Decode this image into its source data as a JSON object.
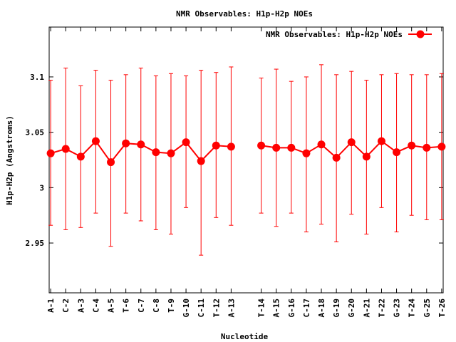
{
  "chart_data": {
    "type": "line",
    "title": "NMR Observables: H1p-H2p NOEs",
    "xlabel": "Nucleotide",
    "ylabel": "H1p-H2p (Angstroms)",
    "ylim": [
      2.905,
      3.145
    ],
    "yticks": [
      2.95,
      3,
      3.05,
      3.1
    ],
    "ytick_labels": [
      "2.95",
      "3",
      "3.05",
      "3.1"
    ],
    "grid": false,
    "legend_position": "top-right",
    "colors": {
      "series": "#ff0000",
      "axis": "#000000",
      "background": "#ffffff"
    },
    "categories": [
      "A-1",
      "C-2",
      "A-3",
      "C-4",
      "A-5",
      "T-6",
      "C-7",
      "C-8",
      "T-9",
      "G-10",
      "C-11",
      "T-12",
      "A-13",
      "T-14",
      "A-15",
      "G-16",
      "C-17",
      "A-18",
      "G-19",
      "G-20",
      "A-21",
      "T-22",
      "G-23",
      "T-24",
      "G-25",
      "T-26"
    ],
    "x": [
      1,
      2,
      3,
      4,
      5,
      6,
      7,
      8,
      9,
      10,
      11,
      12,
      13,
      15,
      16,
      17,
      18,
      19,
      20,
      21,
      22,
      23,
      24,
      25,
      26,
      27
    ],
    "series": [
      {
        "name": "NMR Observables: H1p-H2p NOEs",
        "values": [
          3.031,
          3.035,
          3.028,
          3.042,
          3.023,
          3.04,
          3.039,
          3.032,
          3.031,
          3.041,
          3.024,
          3.038,
          3.037,
          3.038,
          3.036,
          3.036,
          3.031,
          3.039,
          3.027,
          3.041,
          3.028,
          3.042,
          3.032,
          3.038,
          3.036,
          3.037
        ],
        "err_low": [
          2.966,
          2.962,
          2.964,
          2.977,
          2.947,
          2.977,
          2.97,
          2.962,
          2.958,
          2.982,
          2.939,
          2.973,
          2.966,
          2.977,
          2.965,
          2.977,
          2.96,
          2.967,
          2.951,
          2.976,
          2.958,
          2.982,
          2.96,
          2.975,
          2.971,
          2.971
        ],
        "err_high": [
          3.097,
          3.108,
          3.092,
          3.106,
          3.097,
          3.102,
          3.108,
          3.101,
          3.103,
          3.101,
          3.106,
          3.104,
          3.109,
          3.099,
          3.107,
          3.096,
          3.1,
          3.111,
          3.102,
          3.105,
          3.097,
          3.102,
          3.103,
          3.102,
          3.102,
          3.103
        ]
      }
    ]
  }
}
